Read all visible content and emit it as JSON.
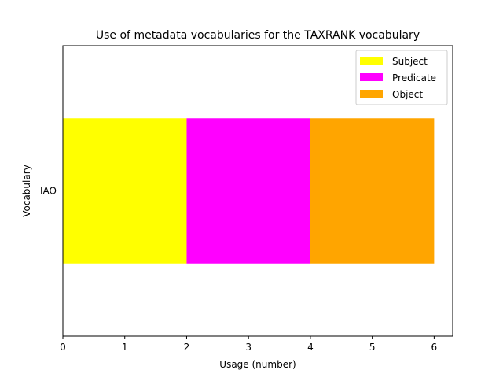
{
  "chart_data": {
    "type": "bar",
    "orientation": "horizontal",
    "stacked": true,
    "title": "Use of metadata vocabularies for the TAXRANK vocabulary",
    "xlabel": "Usage (number)",
    "ylabel": "Vocabulary",
    "categories": [
      "IAO"
    ],
    "xlim": [
      0,
      6.3
    ],
    "xticks": [
      "0",
      "1",
      "2",
      "3",
      "4",
      "5",
      "6"
    ],
    "grid": false,
    "legend_position": "top-right",
    "series": [
      {
        "name": "Subject",
        "values": [
          2
        ],
        "color": "#ffff00"
      },
      {
        "name": "Predicate",
        "values": [
          2
        ],
        "color": "#ff00ff"
      },
      {
        "name": "Object",
        "values": [
          2
        ],
        "color": "#ffa500"
      }
    ]
  }
}
